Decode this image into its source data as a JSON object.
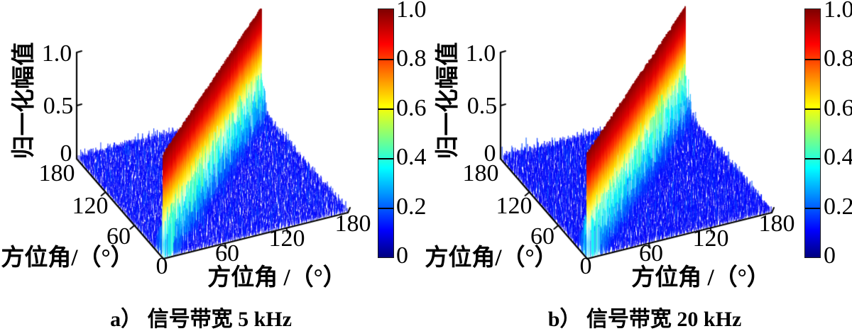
{
  "figure": {
    "description": "Two 3D normalized-amplitude spatial spectra versus two azimuth angles, compared for different signal bandwidths",
    "language": "zh-CN"
  },
  "chart_data": [
    {
      "type": "surface3d",
      "panel": "a",
      "caption": "a） 信号带宽 5 kHz",
      "signal_bandwidth": "5 kHz",
      "xlabel": "方位角 /（°）",
      "ylabel": "方位角/（°）",
      "zlabel": "归一化幅值",
      "xlim": [
        0,
        180
      ],
      "ylim": [
        0,
        180
      ],
      "zlim": [
        0,
        1
      ],
      "xticks": [
        0,
        60,
        120,
        180
      ],
      "yticks": [
        0,
        60,
        120,
        180
      ],
      "zticks": [
        0,
        0.5,
        1.0
      ],
      "xtick_labels": [
        "60",
        "120",
        "180"
      ],
      "ytick_labels": [
        "180",
        "120",
        "60"
      ],
      "origin_label": "0",
      "ztick_labels": [
        "1.0",
        "0.5",
        "0"
      ],
      "colormap": "jet",
      "colorbar_tick_labels": [
        "1.0",
        "0.8",
        "0.6",
        "0.4",
        "0.2",
        "0"
      ],
      "peak_value": 1.0,
      "noise_floor_range": [
        0.05,
        0.25
      ],
      "surface_description": "Sharp red ridge of normalized amplitude ≈ 1.0 along the diagonal where the two azimuth angles are equal (0°–180°); elsewhere a dense blue random noise floor ≈ 0.05–0.25 with a cyan skirt adjacent to the ridge."
    },
    {
      "type": "surface3d",
      "panel": "b",
      "caption": "b） 信号带宽 20 kHz",
      "signal_bandwidth": "20 kHz",
      "xlabel": "方位角 /（°）",
      "ylabel": "方位角/（°）",
      "zlabel": "归一化幅值",
      "xlim": [
        0,
        180
      ],
      "ylim": [
        0,
        180
      ],
      "zlim": [
        0,
        1
      ],
      "xticks": [
        0,
        60,
        120,
        180
      ],
      "yticks": [
        0,
        60,
        120,
        180
      ],
      "zticks": [
        0,
        0.5,
        1.0
      ],
      "xtick_labels": [
        "60",
        "120",
        "180"
      ],
      "ytick_labels": [
        "180",
        "120",
        "60"
      ],
      "origin_label": "0",
      "ztick_labels": [
        "1.0",
        "0.5",
        "0"
      ],
      "colormap": "jet",
      "colorbar_tick_labels": [
        "1.0",
        "0.8",
        "0.6",
        "0.4",
        "0.2",
        "0"
      ],
      "peak_value": 1.0,
      "noise_floor_range": [
        0.05,
        0.25
      ],
      "surface_description": "Sharp red ridge of normalized amplitude ≈ 1.0 along the diagonal where the two azimuth angles are equal (0°–180°); elsewhere a dense blue random noise floor ≈ 0.05–0.25 with a cyan skirt adjacent to the ridge."
    }
  ]
}
